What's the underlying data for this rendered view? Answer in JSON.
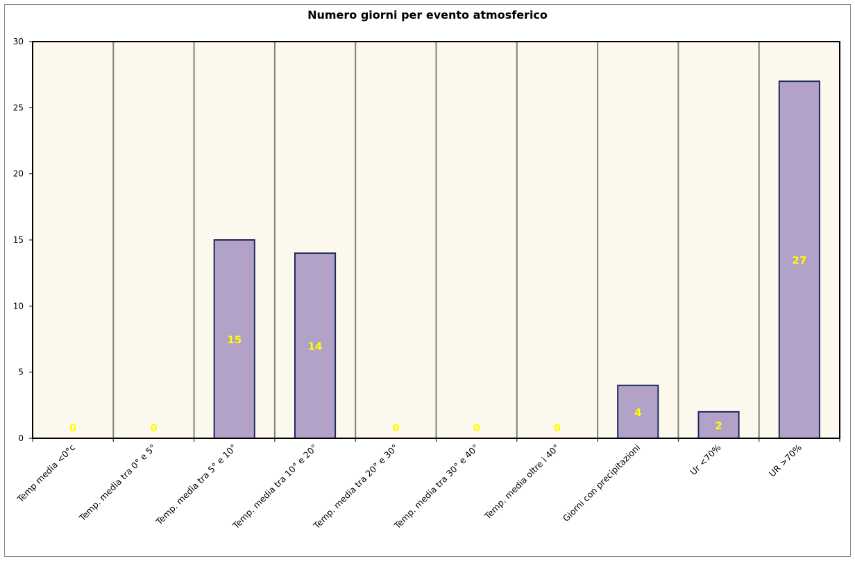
{
  "chart_data": {
    "type": "bar",
    "title": "Numero giorni  per evento atmosferico",
    "categories": [
      "Temp media <0°c",
      "Temp. media tra 0° e 5°",
      "Temp. media tra 5° e 10°",
      "Temp. media tra 10° e 20°",
      "Temp. media tra 20° e 30°",
      "Temp. media tra 30° e 40°",
      "Temp. media oltre i 40°",
      "Giorni con precipitazioni",
      "Ur  <70%",
      "UR >70%"
    ],
    "values": [
      0,
      0,
      15,
      14,
      0,
      0,
      0,
      4,
      2,
      27
    ],
    "ylim": [
      0,
      30
    ],
    "yticks": [
      0,
      5,
      10,
      15,
      20,
      25,
      30
    ],
    "grid": "vertical",
    "legend": "none",
    "colors": {
      "bar_fill": "#b2a2c7",
      "bar_stroke": "#1f2a5a",
      "plot_background": "#fdf8ee",
      "data_label": "#ffff00",
      "gridline": "#808080"
    }
  }
}
